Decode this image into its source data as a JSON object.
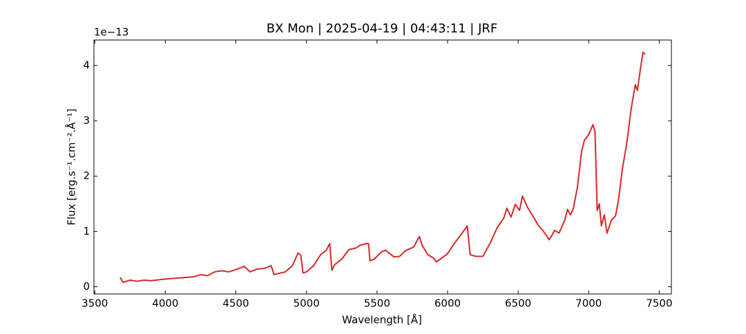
{
  "chart_data": {
    "type": "line",
    "title": "BX Mon | 2025-04-19 | 04:43:11 | JRF",
    "x_label": "Wavelength [Å]",
    "y_label": "Flux [erg.s⁻¹.cm⁻².Å⁻¹]",
    "y_offset_text": "1e−13",
    "xlim": [
      3494,
      7586
    ],
    "ylim": [
      -0.13,
      4.46
    ],
    "xticks": [
      3500,
      4000,
      4500,
      5000,
      5500,
      6000,
      6500,
      7000,
      7500
    ],
    "yticks": [
      0,
      1,
      2,
      3,
      4
    ],
    "x": [
      3680,
      3700,
      3750,
      3800,
      3850,
      3900,
      4000,
      4100,
      4200,
      4250,
      4300,
      4350,
      4400,
      4450,
      4500,
      4560,
      4600,
      4650,
      4700,
      4750,
      4770,
      4850,
      4900,
      4940,
      4960,
      4975,
      5000,
      5050,
      5100,
      5140,
      5165,
      5180,
      5200,
      5250,
      5300,
      5350,
      5380,
      5420,
      5440,
      5450,
      5480,
      5530,
      5560,
      5620,
      5660,
      5700,
      5760,
      5800,
      5820,
      5860,
      5900,
      5920,
      5960,
      6000,
      6050,
      6100,
      6140,
      6160,
      6200,
      6250,
      6300,
      6350,
      6400,
      6420,
      6450,
      6480,
      6510,
      6530,
      6570,
      6600,
      6640,
      6680,
      6720,
      6760,
      6790,
      6830,
      6850,
      6870,
      6890,
      6920,
      6950,
      6970,
      7000,
      7030,
      7045,
      7060,
      7075,
      7090,
      7110,
      7130,
      7160,
      7190,
      7210,
      7240,
      7270,
      7300,
      7330,
      7345,
      7370,
      7385,
      7400
    ],
    "series": [
      {
        "name": "BX Mon",
        "color": "#d62728",
        "values": [
          0.17,
          0.08,
          0.12,
          0.1,
          0.12,
          0.11,
          0.14,
          0.16,
          0.18,
          0.22,
          0.2,
          0.27,
          0.29,
          0.27,
          0.31,
          0.37,
          0.27,
          0.32,
          0.33,
          0.38,
          0.22,
          0.27,
          0.38,
          0.61,
          0.57,
          0.25,
          0.27,
          0.38,
          0.58,
          0.66,
          0.78,
          0.3,
          0.4,
          0.5,
          0.67,
          0.7,
          0.75,
          0.78,
          0.78,
          0.47,
          0.5,
          0.63,
          0.66,
          0.54,
          0.55,
          0.65,
          0.72,
          0.91,
          0.75,
          0.58,
          0.52,
          0.45,
          0.52,
          0.6,
          0.79,
          0.96,
          1.1,
          0.58,
          0.55,
          0.55,
          0.78,
          1.06,
          1.25,
          1.42,
          1.26,
          1.49,
          1.38,
          1.64,
          1.42,
          1.3,
          1.12,
          1.0,
          0.85,
          1.02,
          0.97,
          1.2,
          1.4,
          1.3,
          1.4,
          1.8,
          2.45,
          2.65,
          2.75,
          2.93,
          2.8,
          1.38,
          1.5,
          1.1,
          1.3,
          0.97,
          1.2,
          1.28,
          1.55,
          2.15,
          2.6,
          3.2,
          3.65,
          3.55,
          4.0,
          4.24,
          4.2
        ]
      }
    ]
  }
}
